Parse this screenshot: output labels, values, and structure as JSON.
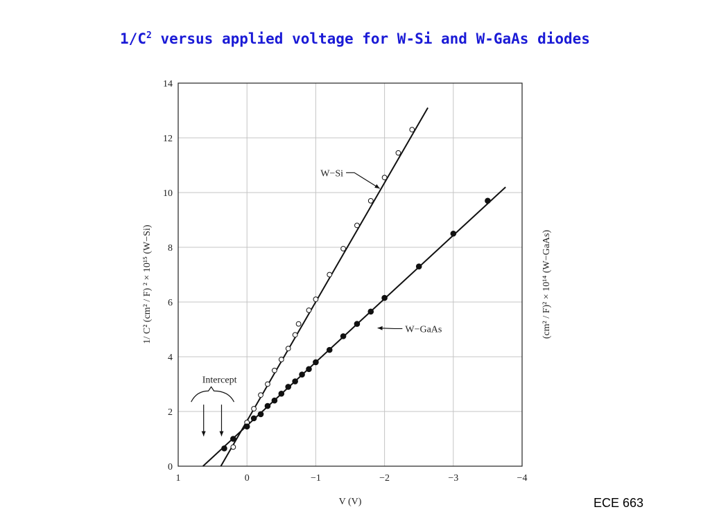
{
  "slide": {
    "title_prefix": "1/C",
    "title_sup": "2",
    "title_suffix": " versus applied voltage for W-Si and W-GaAs diodes",
    "footer": "ECE 663"
  },
  "chart_data": {
    "type": "scatter",
    "xlabel": "V (V)",
    "ylabel_left": "1/ C² (cm² / F) ² × 10¹⁵ (W−Si)",
    "ylabel_right": "(cm² / F)² × 10¹⁴ (W−GaAs)",
    "xlim": [
      1,
      -4
    ],
    "ylim": [
      0,
      14
    ],
    "xticks": [
      1,
      0,
      -1,
      -2,
      -3,
      -4
    ],
    "xtick_labels": [
      "1",
      "0",
      "−1",
      "−2",
      "−3",
      "−4"
    ],
    "yticks": [
      0,
      2,
      4,
      6,
      8,
      10,
      12,
      14
    ],
    "grid": true,
    "series": [
      {
        "name": "W−Si",
        "marker": "open-circle",
        "x": [
          0.2,
          0.0,
          -0.1,
          -0.2,
          -0.3,
          -0.4,
          -0.5,
          -0.6,
          -0.7,
          -0.75,
          -0.9,
          -1.0,
          -1.2,
          -1.4,
          -1.6,
          -1.8,
          -2.0,
          -2.2,
          -2.4
        ],
        "y": [
          0.7,
          1.6,
          2.1,
          2.6,
          3.0,
          3.5,
          3.9,
          4.3,
          4.8,
          5.2,
          5.7,
          6.1,
          7.0,
          7.95,
          8.8,
          9.7,
          10.55,
          11.45,
          12.3
        ],
        "fit_x": [
          0.38,
          -2.63
        ],
        "fit_y": [
          0.0,
          13.1
        ],
        "annotation": {
          "text": "W−Si",
          "x": -1.4,
          "y": 10.6,
          "arrow_to_x": -1.93,
          "arrow_to_y": 10.15
        }
      },
      {
        "name": "W−GaAs",
        "marker": "filled-circle",
        "x": [
          0.33,
          0.2,
          0.0,
          -0.1,
          -0.2,
          -0.3,
          -0.4,
          -0.5,
          -0.6,
          -0.7,
          -0.8,
          -0.9,
          -1.0,
          -1.2,
          -1.4,
          -1.6,
          -1.8,
          -2.0,
          -2.5,
          -3.0,
          -3.5
        ],
        "y": [
          0.65,
          1.0,
          1.45,
          1.75,
          1.9,
          2.2,
          2.4,
          2.65,
          2.9,
          3.1,
          3.35,
          3.55,
          3.8,
          4.25,
          4.75,
          5.2,
          5.65,
          6.15,
          7.3,
          8.5,
          9.7
        ],
        "fit_x": [
          0.64,
          -3.76
        ],
        "fit_y": [
          0.0,
          10.2
        ],
        "annotation": {
          "text": "W−GaAs",
          "x": -2.3,
          "y": 4.9,
          "arrow_to_x": -1.9,
          "arrow_to_y": 5.05
        }
      }
    ],
    "intercept_annotation": {
      "text": "Intercept",
      "arrows_x": [
        0.63,
        0.37
      ]
    }
  }
}
